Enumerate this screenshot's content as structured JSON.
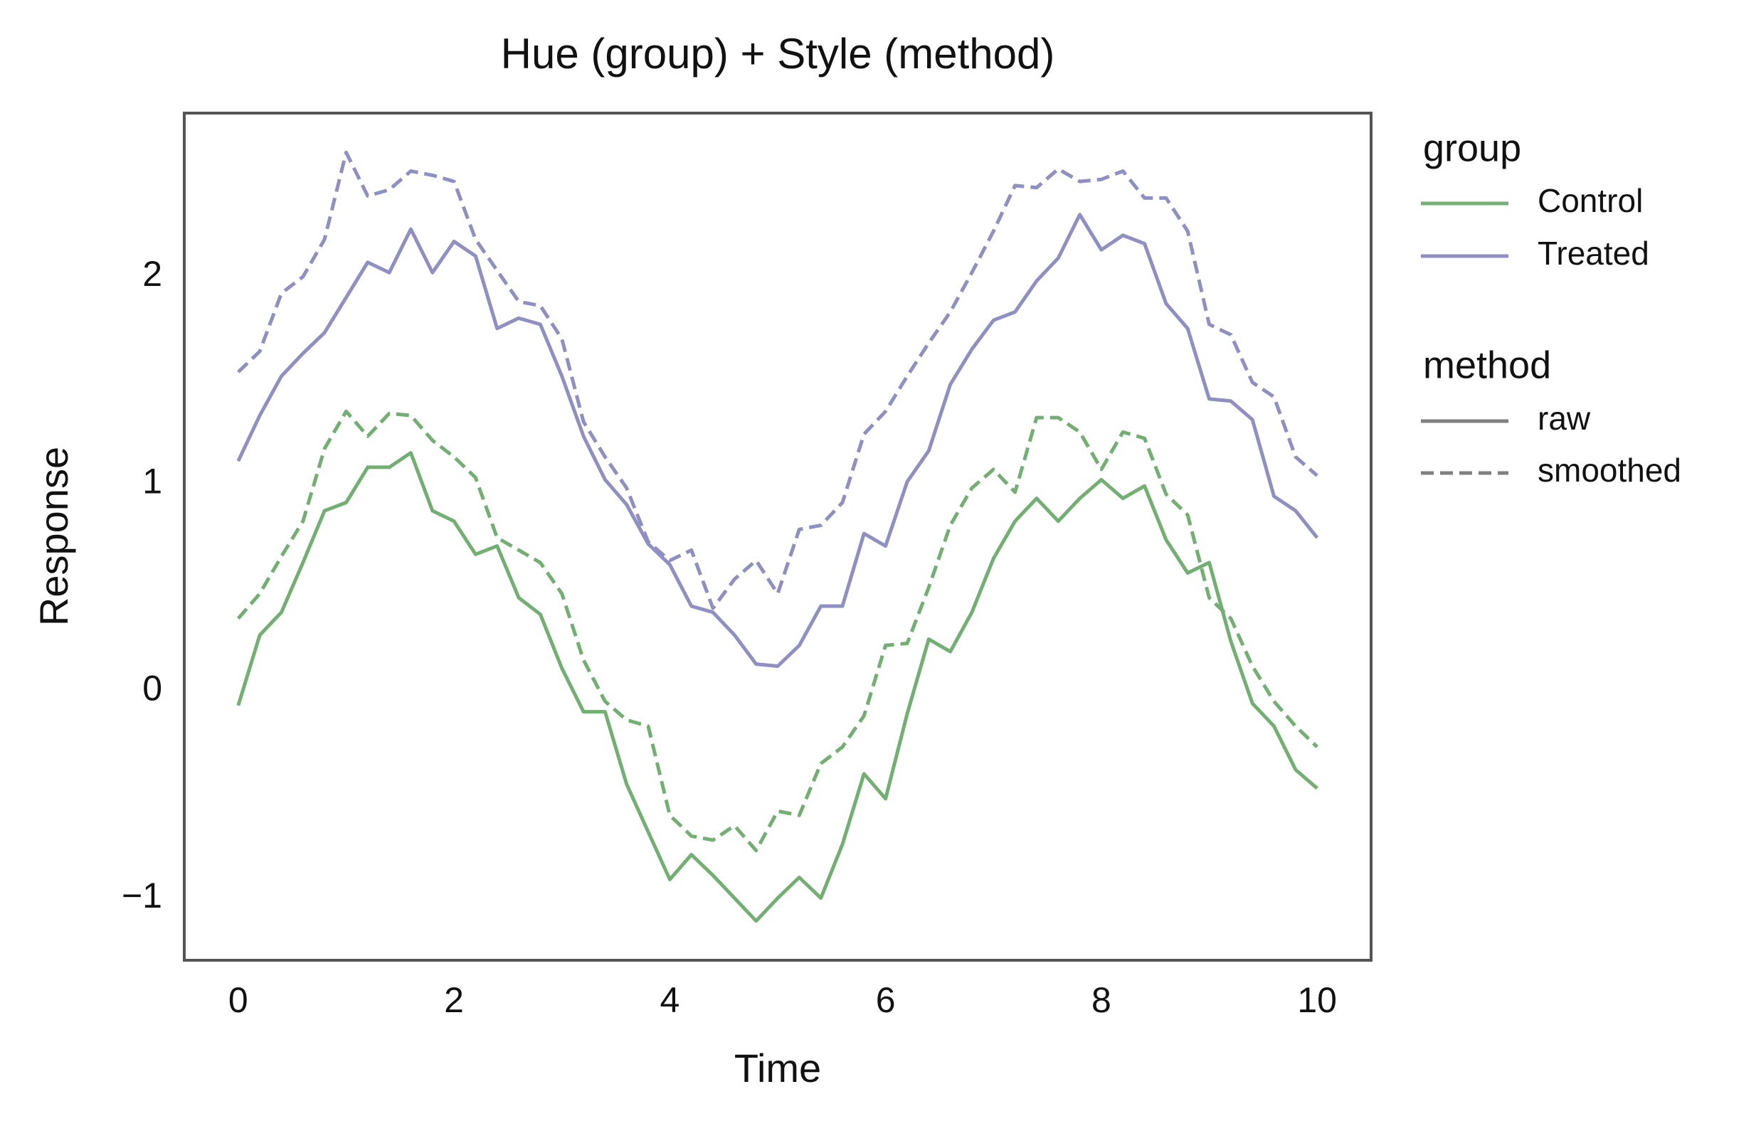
{
  "chart_data": {
    "type": "line",
    "title": "Hue (group) + Style (method)",
    "x_label": "Time",
    "y_label": "Response",
    "x": [
      0,
      0.2,
      0.4,
      0.6,
      0.8,
      1,
      1.2,
      1.4,
      1.6,
      1.8,
      2,
      2.2,
      2.4,
      2.6,
      2.8,
      3,
      3.2,
      3.4,
      3.6,
      3.8,
      4,
      4.2,
      4.4,
      4.6,
      4.8,
      5,
      5.2,
      5.4,
      5.6,
      5.8,
      6,
      6.2,
      6.4,
      6.6,
      6.8,
      7,
      7.2,
      7.4,
      7.6,
      7.8,
      8,
      8.2,
      8.4,
      8.6,
      8.8,
      9,
      9.2,
      9.4,
      9.6,
      9.8,
      10
    ],
    "xlim": [
      -0.5,
      10.5
    ],
    "xticks": [
      0,
      2,
      4,
      6,
      8,
      10
    ],
    "ylim": [
      -1.3,
      2.79
    ],
    "yticks": [
      {
        "value": -1,
        "label": "−1"
      },
      0,
      1,
      2
    ],
    "hue_legend": {
      "title": "group",
      "entries": [
        {
          "name": "Control",
          "color": "#72b072"
        },
        {
          "name": "Treated",
          "color": "#8f8fc4"
        }
      ]
    },
    "style_legend": {
      "title": "method",
      "entries": [
        {
          "name": "raw",
          "dash": "solid"
        },
        {
          "name": "smoothed",
          "dash": "dashed"
        }
      ]
    },
    "series": [
      {
        "group": "Control",
        "method": "raw",
        "values": [
          -0.07,
          0.27,
          0.38,
          0.62,
          0.87,
          0.91,
          1.08,
          1.08,
          1.15,
          0.87,
          0.82,
          0.66,
          0.7,
          0.45,
          0.37,
          0.11,
          -0.1,
          -0.1,
          -0.45,
          -0.68,
          -0.91,
          -0.79,
          -0.89,
          -1.0,
          -1.11,
          -1.0,
          -0.9,
          -1.0,
          -0.74,
          -0.4,
          -0.52,
          -0.11,
          0.25,
          0.19,
          0.38,
          0.64,
          0.82,
          0.93,
          0.82,
          0.93,
          1.02,
          0.93,
          0.99,
          0.73,
          0.57,
          0.62,
          0.24,
          -0.06,
          -0.17,
          -0.38,
          -0.47
        ]
      },
      {
        "group": "Control",
        "method": "smoothed",
        "values": [
          0.35,
          0.47,
          0.65,
          0.82,
          1.17,
          1.35,
          1.23,
          1.34,
          1.33,
          1.21,
          1.13,
          1.03,
          0.74,
          0.68,
          0.62,
          0.47,
          0.15,
          -0.05,
          -0.14,
          -0.17,
          -0.6,
          -0.7,
          -0.72,
          -0.65,
          -0.77,
          -0.58,
          -0.6,
          -0.35,
          -0.27,
          -0.12,
          0.22,
          0.23,
          0.5,
          0.8,
          0.98,
          1.07,
          0.96,
          1.32,
          1.32,
          1.25,
          1.07,
          1.25,
          1.22,
          0.95,
          0.85,
          0.45,
          0.35,
          0.12,
          -0.05,
          -0.17,
          -0.27
        ]
      },
      {
        "group": "Treated",
        "method": "raw",
        "values": [
          1.11,
          1.33,
          1.52,
          1.63,
          1.73,
          1.9,
          2.07,
          2.02,
          2.23,
          2.02,
          2.17,
          2.1,
          1.75,
          1.8,
          1.77,
          1.52,
          1.23,
          1.02,
          0.9,
          0.71,
          0.61,
          0.41,
          0.38,
          0.27,
          0.13,
          0.12,
          0.22,
          0.41,
          0.41,
          0.76,
          0.7,
          1.01,
          1.16,
          1.48,
          1.65,
          1.79,
          1.83,
          1.98,
          2.09,
          2.3,
          2.13,
          2.2,
          2.16,
          1.87,
          1.75,
          1.41,
          1.4,
          1.31,
          0.94,
          0.87,
          0.74
        ]
      },
      {
        "group": "Treated",
        "method": "smoothed",
        "values": [
          1.54,
          1.64,
          1.92,
          2.0,
          2.18,
          2.6,
          2.39,
          2.42,
          2.51,
          2.49,
          2.46,
          2.18,
          2.03,
          1.88,
          1.86,
          1.7,
          1.3,
          1.13,
          0.98,
          0.72,
          0.63,
          0.68,
          0.4,
          0.54,
          0.63,
          0.47,
          0.78,
          0.8,
          0.91,
          1.24,
          1.35,
          1.52,
          1.68,
          1.83,
          2.02,
          2.22,
          2.44,
          2.43,
          2.52,
          2.46,
          2.47,
          2.51,
          2.38,
          2.38,
          2.22,
          1.77,
          1.72,
          1.49,
          1.42,
          1.13,
          1.04
        ]
      }
    ]
  }
}
